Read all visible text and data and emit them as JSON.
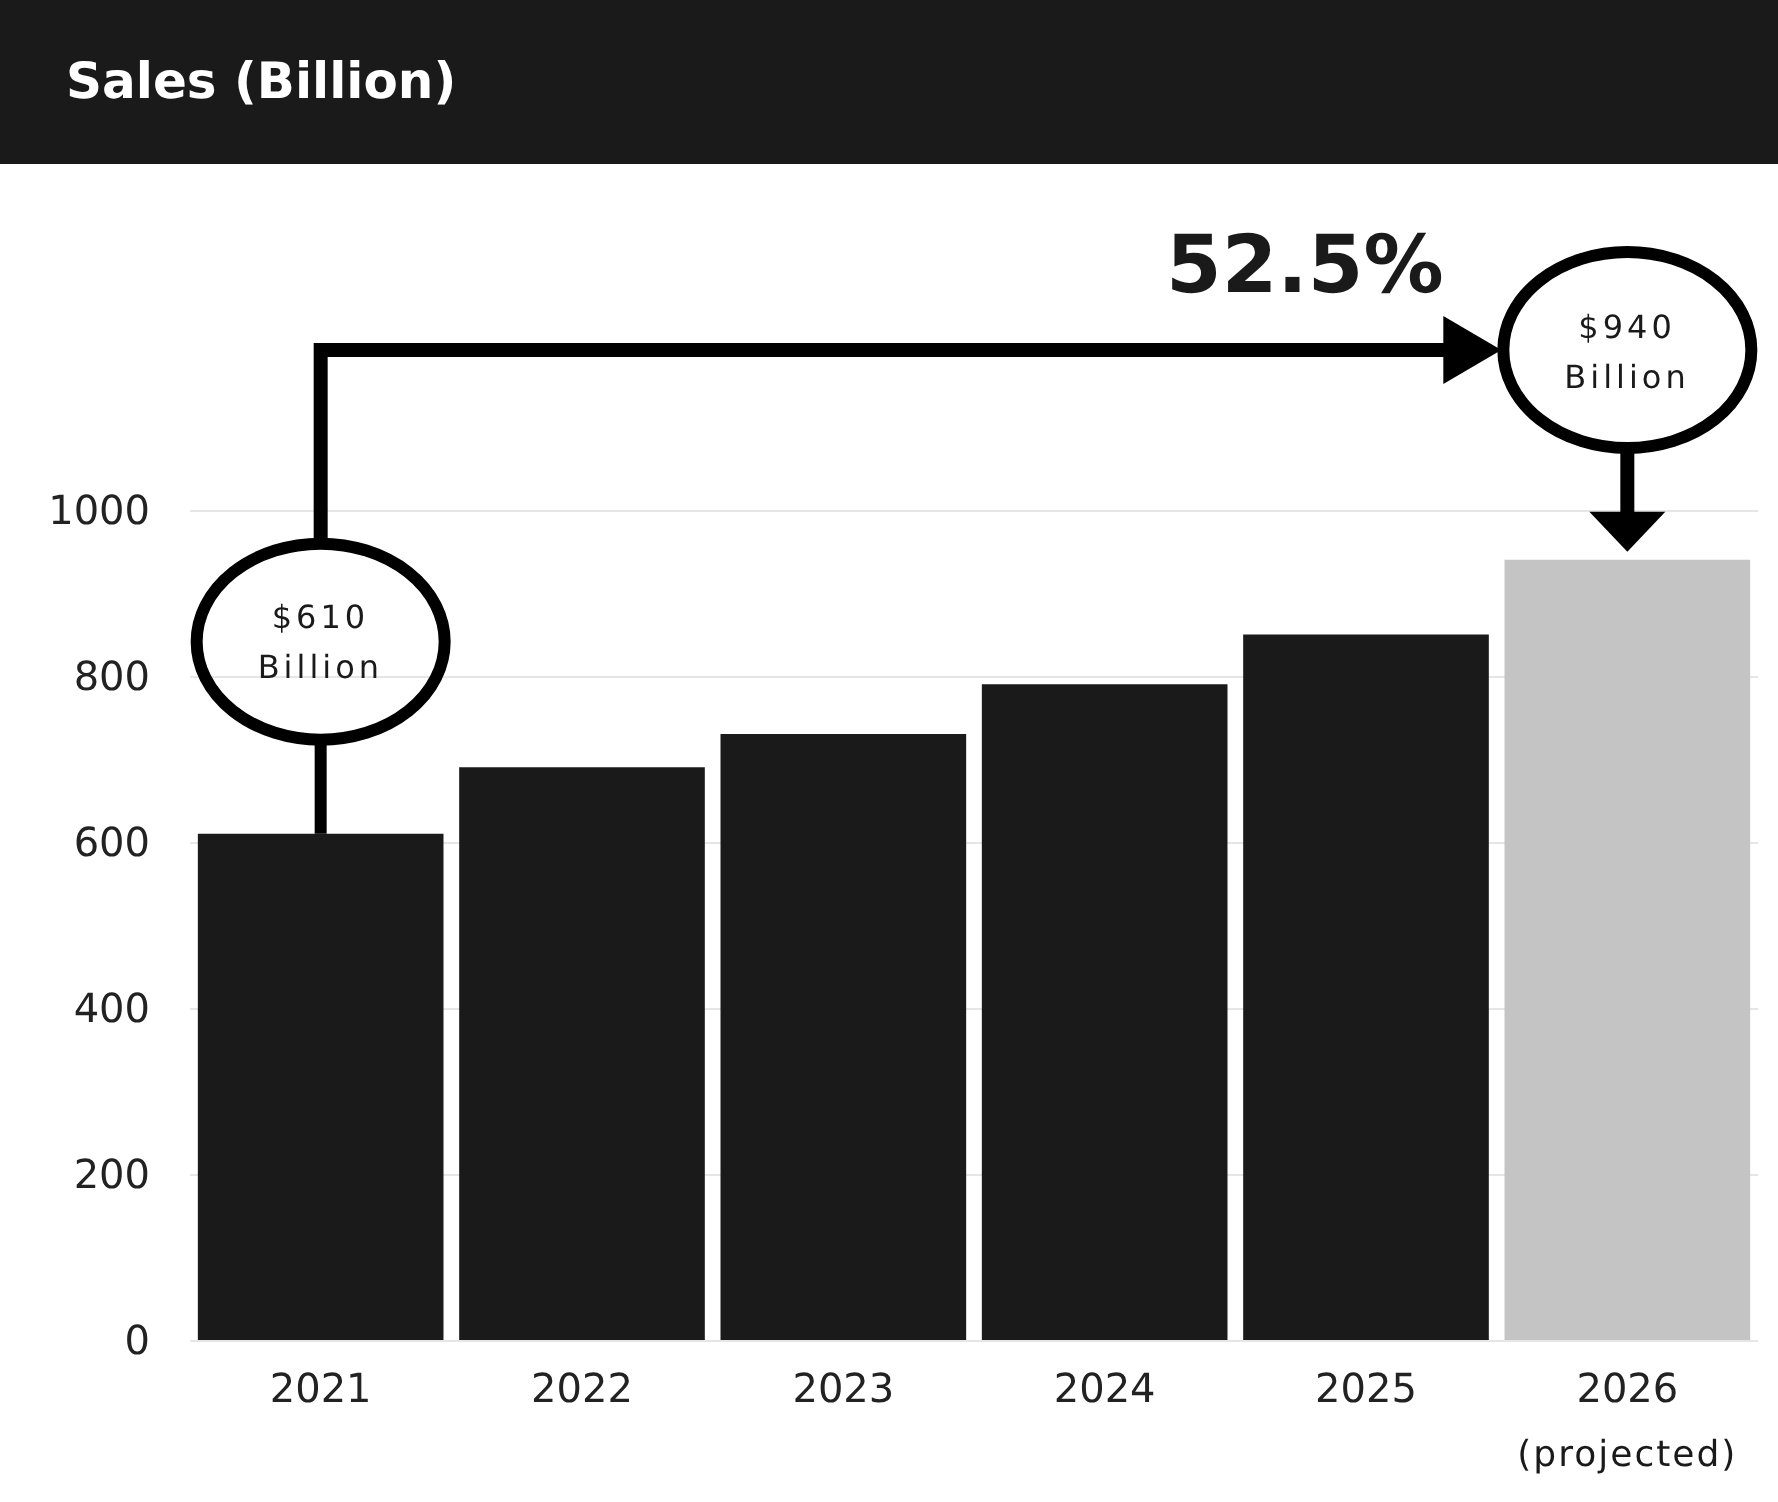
{
  "chart_data": {
    "type": "bar",
    "title": "Sales (Billion)",
    "categories": [
      "2021",
      "2022",
      "2023",
      "2024",
      "2025",
      "2026"
    ],
    "values": [
      610,
      690,
      730,
      790,
      850,
      940
    ],
    "colors": [
      "#1a1a1a",
      "#1a1a1a",
      "#1a1a1a",
      "#1a1a1a",
      "#1a1a1a",
      "#c4c4c4"
    ],
    "ylim": [
      0,
      1000
    ],
    "yticks": [
      0,
      200,
      400,
      600,
      800,
      1000
    ],
    "grid": "y",
    "annotations": [
      "52.5%",
      "$610 Billion",
      "$940 Billion",
      "(projected)"
    ]
  }
}
